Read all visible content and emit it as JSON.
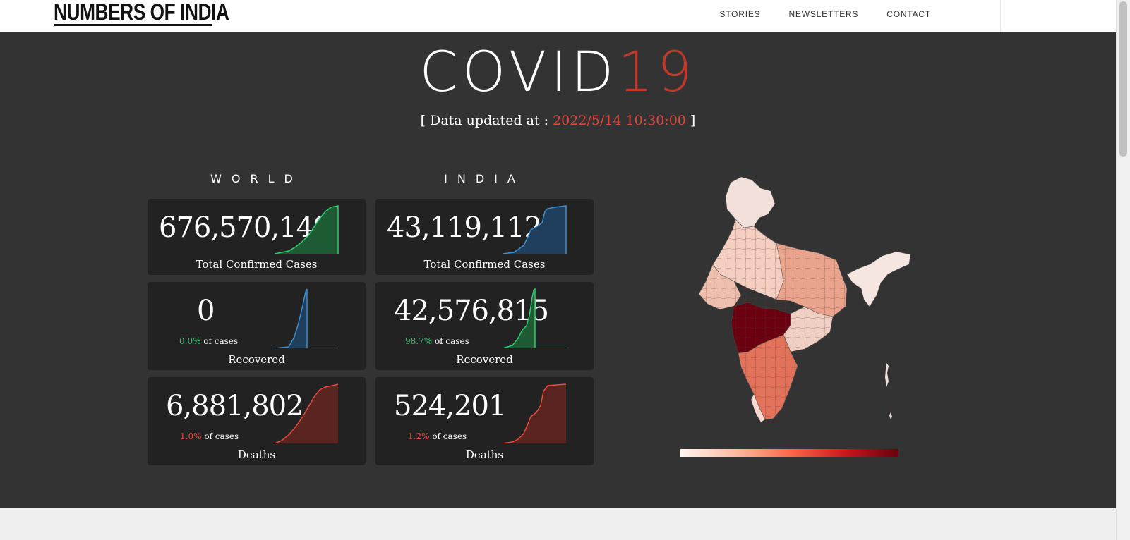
{
  "header": {
    "logo": "NUMBERS OF INDIA",
    "nav": [
      "STORIES",
      "NEWSLETTERS",
      "CONTACT"
    ]
  },
  "hero": {
    "title_main": "COVID",
    "title_accent": "19",
    "updated_prefix": "[ Data updated at : ",
    "updated_time": "2022/5/14 10:30:00",
    "updated_suffix": " ]"
  },
  "world": {
    "label": "WORLD",
    "confirmed": {
      "value": "676,570,149",
      "caption": "Total Confirmed Cases"
    },
    "recovered": {
      "value": "0",
      "percent": "0.0%",
      "percent_suffix": "of cases",
      "caption": "Recovered"
    },
    "deaths": {
      "value": "6,881,802",
      "percent": "1.0%",
      "percent_suffix": "of cases",
      "caption": "Deaths"
    }
  },
  "india": {
    "label": "INDIA",
    "confirmed": {
      "value": "43,119,112",
      "caption": "Total Confirmed Cases"
    },
    "recovered": {
      "value": "42,576,815",
      "percent": "98.7%",
      "percent_suffix": "of cases",
      "caption": "Recovered"
    },
    "deaths": {
      "value": "524,201",
      "percent": "1.2%",
      "percent_suffix": "of cases",
      "caption": "Deaths"
    }
  },
  "colors": {
    "hero_bg": "#333333",
    "card_bg": "#222222",
    "accent_red": "#c0392b",
    "green": "#2ecc71",
    "blue": "#3a8fd0",
    "spark_green_fill": "#1e5a33",
    "spark_blue_fill": "#1f3f5c",
    "spark_red_fill": "#5a2520"
  },
  "icons": {
    "world_confirmed_spark": "cumulative-area-sparkline",
    "world_recovered_spark": "spike-area-sparkline",
    "india_map": "india-choropleth-map",
    "legend": "color-scale-legend"
  }
}
